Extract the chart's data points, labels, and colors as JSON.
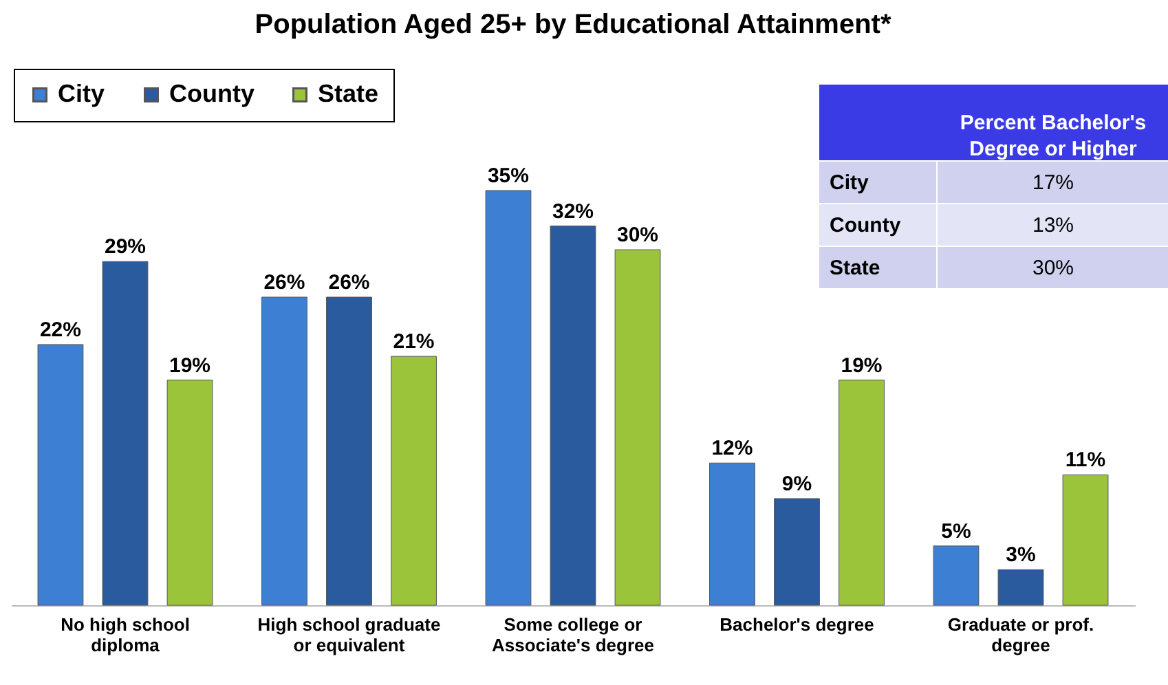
{
  "chart_data": [
    {
      "type": "bar",
      "title": "Population Aged 25+ by Educational Attainment*",
      "categories": [
        "No high school diploma",
        "High school graduate or equivalent",
        "Some college or Associate's degree",
        "Bachelor's degree",
        "Graduate or prof. degree"
      ],
      "series": [
        {
          "name": "City",
          "color": "#3d7fd3",
          "values": [
            22,
            26,
            35,
            12,
            5
          ],
          "value_labels": [
            "22%",
            "26%",
            "35%",
            "12%",
            "5%"
          ]
        },
        {
          "name": "County",
          "color": "#2a5b9e",
          "values": [
            29,
            26,
            32,
            9,
            3
          ],
          "value_labels": [
            "29%",
            "26%",
            "32%",
            "9%",
            "3%"
          ]
        },
        {
          "name": "State",
          "color": "#9cc43a",
          "values": [
            19,
            21,
            30,
            19,
            11
          ],
          "value_labels": [
            "19%",
            "21%",
            "30%",
            "19%",
            "11%"
          ]
        }
      ],
      "legend": "top left"
    },
    {
      "type": "other",
      "title": "Percent Bachelor's Degree or Higher",
      "categories": [
        "City",
        "County",
        "State"
      ],
      "annotations": [
        "17%",
        "13%",
        "30%"
      ]
    }
  ]
}
